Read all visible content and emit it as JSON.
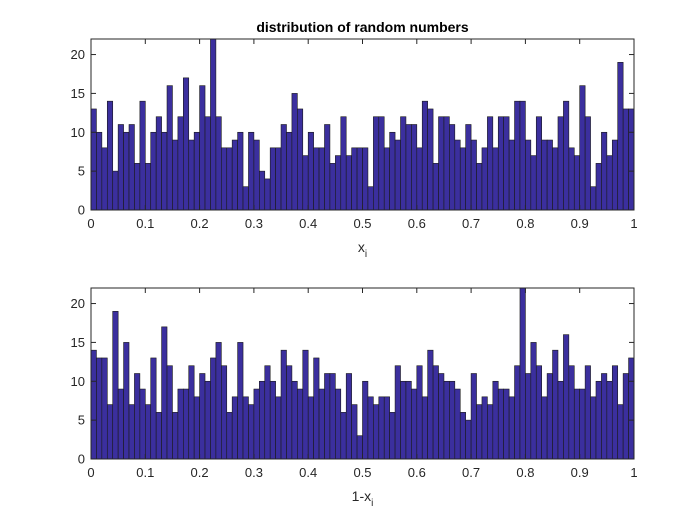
{
  "chart_data": [
    {
      "type": "bar",
      "title": "distribution of random numbers",
      "xlabel_main": "x",
      "xlabel_sub": "i",
      "xlabel_prefix": "",
      "xlim": [
        0,
        1
      ],
      "ylim": [
        0,
        22
      ],
      "xticks": [
        "0",
        "0.1",
        "0.2",
        "0.3",
        "0.4",
        "0.5",
        "0.6",
        "0.7",
        "0.8",
        "0.9",
        "1"
      ],
      "yticks": [
        "0",
        "5",
        "10",
        "15",
        "20"
      ],
      "bin_count": 100,
      "values": [
        13,
        10,
        8,
        14,
        5,
        11,
        10,
        11,
        6,
        14,
        6,
        10,
        12,
        10,
        16,
        9,
        12,
        17,
        9,
        10,
        16,
        12,
        22,
        12,
        8,
        8,
        9,
        10,
        3,
        10,
        9,
        5,
        4,
        8,
        8,
        11,
        10,
        15,
        13,
        7,
        10,
        8,
        8,
        11,
        6,
        7,
        12,
        7,
        8,
        8,
        8,
        3,
        12,
        12,
        8,
        10,
        9,
        12,
        11,
        11,
        8,
        14,
        13,
        6,
        12,
        12,
        11,
        9,
        8,
        11,
        9,
        6,
        8,
        12,
        8,
        12,
        12,
        9,
        14,
        14,
        9,
        7,
        12,
        9,
        9,
        8,
        12,
        14,
        8,
        7,
        16,
        12,
        3,
        6,
        10,
        7,
        9,
        19,
        13,
        13
      ],
      "bar_color": "#3b2f9e",
      "edge_color": "#1a1a1a"
    },
    {
      "type": "bar",
      "title": "",
      "xlabel_main": "x",
      "xlabel_sub": "i",
      "xlabel_prefix": "1-",
      "xlim": [
        0,
        1
      ],
      "ylim": [
        0,
        22
      ],
      "xticks": [
        "0",
        "0.1",
        "0.2",
        "0.3",
        "0.4",
        "0.5",
        "0.6",
        "0.7",
        "0.8",
        "0.9",
        "1"
      ],
      "yticks": [
        "0",
        "5",
        "10",
        "15",
        "20"
      ],
      "bin_count": 100,
      "values": [
        14,
        13,
        13,
        7,
        19,
        9,
        15,
        7,
        11,
        9,
        7,
        13,
        6,
        17,
        12,
        6,
        9,
        9,
        12,
        8,
        11,
        10,
        13,
        15,
        12,
        6,
        8,
        15,
        8,
        7,
        9,
        10,
        12,
        10,
        8,
        14,
        12,
        10,
        9,
        14,
        8,
        13,
        9,
        11,
        11,
        9,
        6,
        11,
        7,
        3,
        10,
        8,
        7,
        8,
        8,
        6,
        12,
        10,
        10,
        9,
        12,
        8,
        14,
        12,
        11,
        10,
        10,
        9,
        6,
        5,
        11,
        7,
        8,
        7,
        10,
        9,
        9,
        8,
        12,
        22,
        11,
        15,
        12,
        8,
        11,
        14,
        10,
        16,
        12,
        9,
        9,
        12,
        8,
        10,
        11,
        10,
        12,
        7,
        11,
        13
      ],
      "bar_color": "#3b2f9e",
      "edge_color": "#1a1a1a"
    }
  ]
}
